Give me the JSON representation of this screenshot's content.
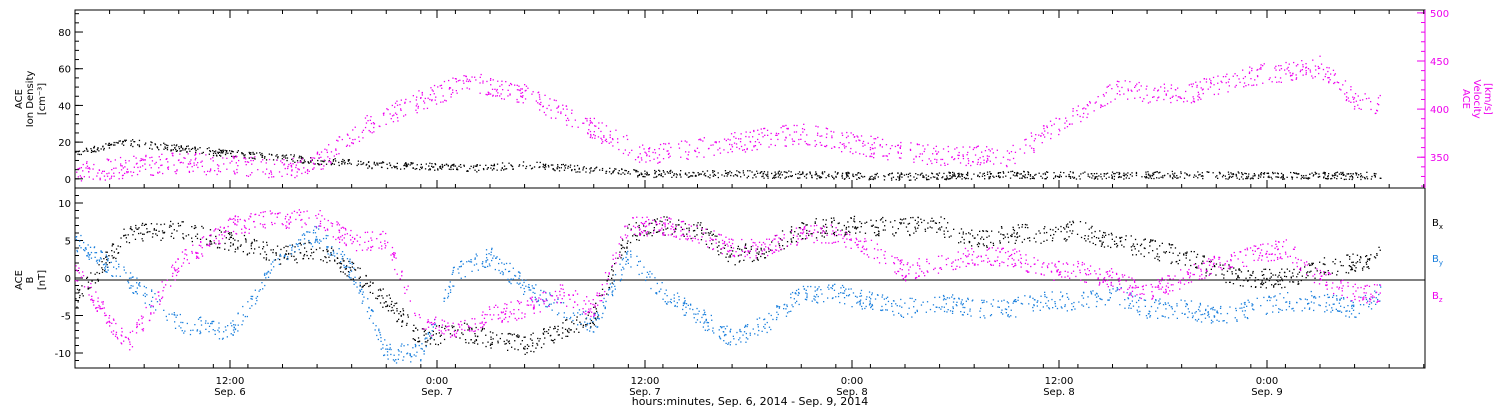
{
  "colors": {
    "black": "#000000",
    "magenta": "#ee00ee",
    "blue": "#1a7fdd"
  },
  "x_axis": {
    "label": "hours:minutes, Sep.  6, 2014 - Sep.  9, 2014",
    "ticks": [
      {
        "time": "12:00",
        "day": "Sep. 6"
      },
      {
        "time": "0:00",
        "day": "Sep. 7"
      },
      {
        "time": "12:00",
        "day": "Sep. 7"
      },
      {
        "time": "0:00",
        "day": "Sep. 8"
      },
      {
        "time": "12:00",
        "day": "Sep. 8"
      },
      {
        "time": "0:00",
        "day": "Sep. 9"
      }
    ]
  },
  "chart_data": [
    {
      "type": "scatter",
      "panel": "top",
      "left_axis_label": [
        "ACE",
        "Ion Density",
        "[cm⁻³]"
      ],
      "right_axis_label": [
        "ACE",
        "Velocity",
        "[km/s]"
      ],
      "left_ylim": [
        -5,
        92
      ],
      "left_ticks": [
        "0",
        "20",
        "40",
        "60",
        "80"
      ],
      "right_ylim": [
        318,
        503
      ],
      "right_ticks": [
        "350",
        "400",
        "450",
        "500"
      ],
      "x_hours": [
        0,
        3,
        6,
        9,
        12,
        14,
        17,
        20,
        23,
        26,
        30,
        33,
        36,
        42,
        48,
        54,
        60,
        64,
        68,
        72,
        74,
        75.5
      ],
      "series": [
        {
          "name": "Ion Density",
          "axis": "left",
          "color": "black",
          "values": [
            15,
            20,
            17,
            14,
            12,
            10,
            8,
            7,
            6,
            8,
            5,
            3,
            3,
            2.5,
            1.5,
            2.5,
            2,
            2.5,
            2,
            2,
            2,
            2
          ]
        },
        {
          "name": "Velocity",
          "axis": "right",
          "color": "magenta",
          "values": [
            335,
            340,
            345,
            342,
            338,
            345,
            385,
            410,
            430,
            415,
            380,
            352,
            360,
            375,
            355,
            350,
            420,
            415,
            435,
            445,
            410,
            405
          ]
        }
      ]
    },
    {
      "type": "scatter",
      "panel": "bottom",
      "left_axis_label": [
        "ACE",
        "B",
        "[nT]"
      ],
      "ylim": [
        -12,
        12
      ],
      "ticks": [
        "-10",
        "-5",
        "0",
        "5",
        "10"
      ],
      "x_hours": [
        0,
        3,
        6,
        9,
        12,
        14,
        16,
        18,
        20,
        22,
        24,
        26,
        28,
        30,
        32,
        34,
        36,
        38,
        40,
        42,
        44,
        46,
        48,
        50,
        52,
        54,
        56,
        58,
        60,
        62,
        64,
        66,
        68,
        70,
        72,
        74,
        75.5
      ],
      "series": [
        {
          "name": "Bx",
          "color": "black",
          "values": [
            -3,
            6,
            6.5,
            5,
            3,
            4,
            1,
            -3,
            -8,
            -7,
            -8,
            -9,
            -7,
            -5,
            6,
            7,
            6.5,
            3,
            4,
            6.5,
            7,
            7,
            7,
            7,
            5,
            6,
            6,
            6.5,
            5,
            4,
            3,
            1,
            0,
            0,
            1.5,
            2,
            3
          ]
        },
        {
          "name": "By",
          "color": "blue",
          "values": [
            5,
            0,
            -6,
            -7,
            3,
            6,
            1,
            -10,
            -10,
            1,
            3,
            -1,
            -4,
            -6,
            3,
            -2,
            -5,
            -8,
            -6,
            -2,
            -2,
            -3,
            -4,
            -3,
            -4,
            -4,
            -3,
            -3,
            -2,
            -4,
            -4,
            -5,
            -4,
            -3,
            -3,
            -4,
            -2
          ]
        },
        {
          "name": "Bz",
          "color": "magenta",
          "values": [
            1,
            -9,
            2,
            7,
            8,
            8,
            5,
            5,
            -6,
            -7,
            -5,
            -4,
            -2,
            -4,
            7,
            7,
            6,
            4,
            4,
            6,
            6,
            4,
            1,
            2,
            3,
            3,
            1,
            1,
            0,
            -2,
            0,
            2,
            3,
            4,
            0,
            -2,
            -2
          ]
        }
      ],
      "legend": {
        "placement": "right",
        "entries": [
          {
            "label": "B",
            "sub": "x",
            "color": "black"
          },
          {
            "label": "B",
            "sub": "y",
            "color": "blue"
          },
          {
            "label": "B",
            "sub": "z",
            "color": "magenta"
          }
        ]
      }
    }
  ]
}
